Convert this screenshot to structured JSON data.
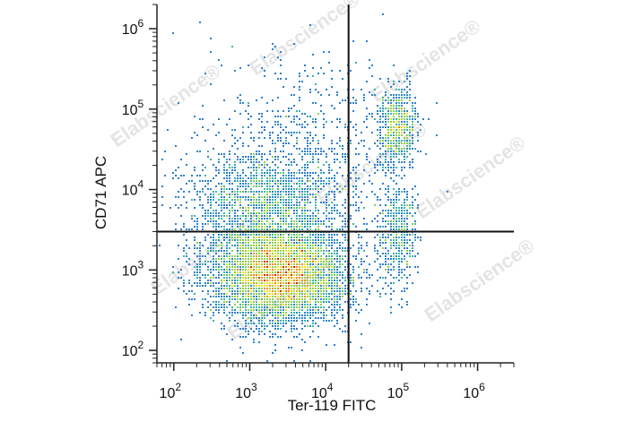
{
  "chart_data": {
    "type": "scatter",
    "subtype": "flow-cytometry-density-dot-plot",
    "title": "",
    "xlabel": "Ter-119 FITC",
    "ylabel": "CD71 APC",
    "x_scale": "log",
    "y_scale": "log",
    "xlim": [
      60,
      3000000
    ],
    "ylim": [
      70,
      2000000
    ],
    "x_ticks": [
      {
        "value": 100,
        "base": "10",
        "exp": "2"
      },
      {
        "value": 1000,
        "base": "10",
        "exp": "3"
      },
      {
        "value": 10000,
        "base": "10",
        "exp": "4"
      },
      {
        "value": 100000,
        "base": "10",
        "exp": "5"
      },
      {
        "value": 1000000,
        "base": "10",
        "exp": "6"
      }
    ],
    "y_ticks": [
      {
        "value": 100,
        "base": "10",
        "exp": "2"
      },
      {
        "value": 1000,
        "base": "10",
        "exp": "3"
      },
      {
        "value": 10000,
        "base": "10",
        "exp": "4"
      },
      {
        "value": 100000,
        "base": "10",
        "exp": "5"
      },
      {
        "value": 1000000,
        "base": "10",
        "exp": "6"
      }
    ],
    "quadrant_gates": {
      "x": 20000,
      "y": 3000
    },
    "populations": [
      {
        "center": [
          2500,
          900
        ],
        "spread_decades": [
          0.45,
          0.3
        ],
        "weight": 0.62
      },
      {
        "center": [
          1500,
          6000
        ],
        "spread_decades": [
          0.5,
          0.35
        ],
        "weight": 0.18
      },
      {
        "center": [
          90000,
          60000
        ],
        "spread_decades": [
          0.12,
          0.25
        ],
        "weight": 0.07
      },
      {
        "center": [
          90000,
          2500
        ],
        "spread_decades": [
          0.12,
          0.35
        ],
        "weight": 0.05
      },
      {
        "center": [
          6000,
          30000
        ],
        "spread_decades": [
          0.7,
          0.6
        ],
        "weight": 0.08
      }
    ],
    "density_colors": [
      "#1f3fa8",
      "#2f7fd0",
      "#3cb6a8",
      "#8fd04a",
      "#f0e020",
      "#f08a10",
      "#e02010"
    ],
    "grid": false,
    "legend": "none"
  },
  "watermark": {
    "text": "Elabscience",
    "mark": "®"
  }
}
